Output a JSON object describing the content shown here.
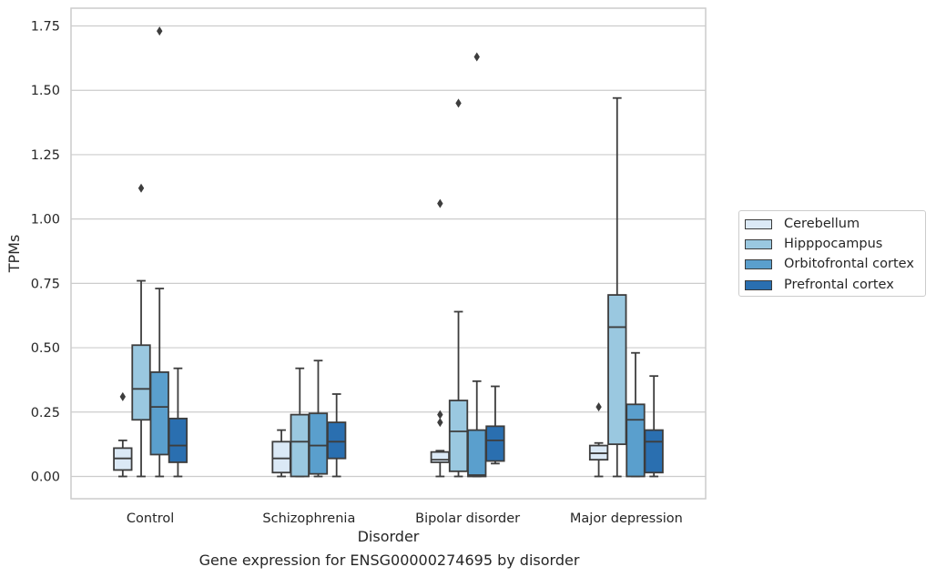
{
  "chart_data": {
    "type": "box",
    "title": "Gene expression for ENSG00000274695 by disorder",
    "xlabel": "Disorder",
    "ylabel": "TPMs",
    "ylim": [
      -0.085,
      1.82
    ],
    "yticks": [
      0.0,
      0.25,
      0.5,
      0.75,
      1.0,
      1.25,
      1.5,
      1.75
    ],
    "ytick_labels": [
      "0.00",
      "0.25",
      "0.50",
      "0.75",
      "1.00",
      "1.25",
      "1.50",
      "1.75"
    ],
    "categories": [
      "Control",
      "Schizophrenia",
      "Bipolar disorder",
      "Major depression"
    ],
    "grid": "horizontal",
    "legend_position": "right",
    "series": [
      {
        "name": "Cerebellum",
        "color": "#dbe9f6",
        "boxes": [
          {
            "min": 0.0,
            "q1": 0.025,
            "median": 0.07,
            "q3": 0.11,
            "max": 0.14,
            "outliers": [
              0.31
            ]
          },
          {
            "min": 0.0,
            "q1": 0.015,
            "median": 0.07,
            "q3": 0.135,
            "max": 0.18,
            "outliers": []
          },
          {
            "min": 0.0,
            "q1": 0.055,
            "median": 0.065,
            "q3": 0.095,
            "max": 0.1,
            "outliers": [
              0.21,
              0.24,
              1.06
            ]
          },
          {
            "min": 0.0,
            "q1": 0.065,
            "median": 0.09,
            "q3": 0.12,
            "max": 0.13,
            "outliers": [
              0.27
            ]
          }
        ]
      },
      {
        "name": "Hipppocampus",
        "color": "#9ac8e0",
        "boxes": [
          {
            "min": 0.0,
            "q1": 0.22,
            "median": 0.34,
            "q3": 0.51,
            "max": 0.76,
            "outliers": [
              1.12
            ]
          },
          {
            "min": 0.0,
            "q1": 0.0,
            "median": 0.135,
            "q3": 0.24,
            "max": 0.42,
            "outliers": []
          },
          {
            "min": 0.0,
            "q1": 0.02,
            "median": 0.175,
            "q3": 0.295,
            "max": 0.64,
            "outliers": [
              1.45
            ]
          },
          {
            "min": 0.0,
            "q1": 0.125,
            "median": 0.58,
            "q3": 0.705,
            "max": 1.47,
            "outliers": []
          }
        ]
      },
      {
        "name": "Orbitofrontal cortex",
        "color": "#5a9fcd",
        "boxes": [
          {
            "min": 0.0,
            "q1": 0.085,
            "median": 0.27,
            "q3": 0.405,
            "max": 0.73,
            "outliers": [
              1.73
            ]
          },
          {
            "min": 0.0,
            "q1": 0.01,
            "median": 0.12,
            "q3": 0.245,
            "max": 0.45,
            "outliers": []
          },
          {
            "min": 0.0,
            "q1": 0.0,
            "median": 0.005,
            "q3": 0.18,
            "max": 0.37,
            "outliers": [
              1.63
            ]
          },
          {
            "min": 0.0,
            "q1": 0.0,
            "median": 0.22,
            "q3": 0.28,
            "max": 0.48,
            "outliers": []
          }
        ]
      },
      {
        "name": "Prefrontal cortex",
        "color": "#2a6fb0",
        "boxes": [
          {
            "min": 0.0,
            "q1": 0.055,
            "median": 0.12,
            "q3": 0.225,
            "max": 0.42,
            "outliers": []
          },
          {
            "min": 0.0,
            "q1": 0.07,
            "median": 0.135,
            "q3": 0.21,
            "max": 0.32,
            "outliers": []
          },
          {
            "min": 0.05,
            "q1": 0.06,
            "median": 0.14,
            "q3": 0.195,
            "max": 0.35,
            "outliers": []
          },
          {
            "min": 0.0,
            "q1": 0.015,
            "median": 0.135,
            "q3": 0.18,
            "max": 0.39,
            "outliers": []
          }
        ]
      }
    ]
  }
}
